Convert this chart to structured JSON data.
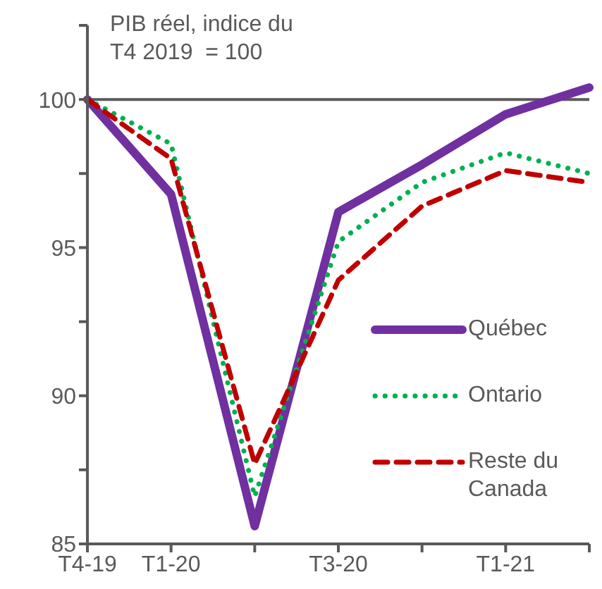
{
  "chart_data": {
    "type": "line",
    "title": "PIB réel, indice du\nT4 2019  = 100",
    "categories": [
      "T4-19",
      "T1-20",
      null,
      "T3-20",
      null,
      "T1-21",
      null
    ],
    "series": [
      {
        "name": "Québec",
        "color": "#7030a0",
        "line_style": "solid",
        "values": [
          100,
          96.8,
          85.6,
          96.2,
          97.8,
          99.5,
          100.4
        ]
      },
      {
        "name": "Ontario",
        "color": "#00b050",
        "line_style": "dotted",
        "values": [
          100,
          98.5,
          86.6,
          95.2,
          97.2,
          98.2,
          97.5
        ]
      },
      {
        "name": "Reste du Canada",
        "color": "#c00000",
        "line_style": "dashed",
        "values": [
          100,
          98.0,
          87.7,
          93.9,
          96.4,
          97.6,
          97.2
        ]
      }
    ],
    "ylim": [
      85,
      102.5
    ],
    "yticks": [
      85,
      {
        "value": 87.5,
        "label": null
      },
      90,
      {
        "value": 92.5,
        "label": null
      },
      95,
      {
        "value": 97.5,
        "label": null
      },
      100,
      {
        "value": 102.5,
        "label": null
      }
    ],
    "ref_lines": [
      {
        "axis": "y",
        "value": 100,
        "color": "#595959"
      }
    ],
    "grid": false,
    "legend": "right",
    "marker": "none"
  }
}
